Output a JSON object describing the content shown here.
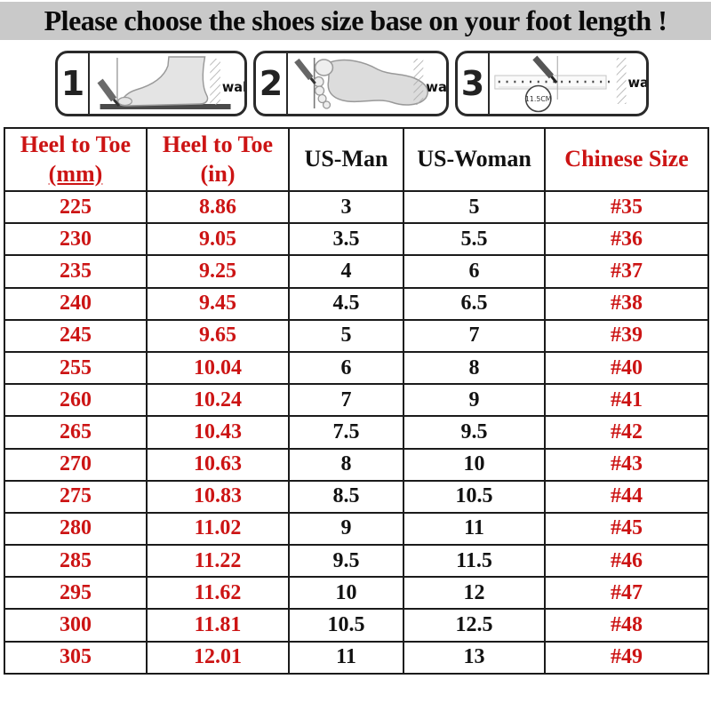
{
  "title": "Please choose the shoes size base on your foot length !",
  "colors": {
    "accent_red": "#cc1414",
    "title_bg": "#c9c9c9",
    "table_border": "#1b1b1b"
  },
  "steps": [
    {
      "number": "1",
      "wall_label": "wall"
    },
    {
      "number": "2",
      "wall_label": "wall"
    },
    {
      "number": "3",
      "wall_label": "wall",
      "measure_label": "11.5CM"
    }
  ],
  "table": {
    "headers": [
      {
        "line1": "Heel to Toe",
        "line2": "(mm)"
      },
      {
        "line1": "Heel to Toe",
        "line2": "(in)"
      },
      {
        "line1": "US-Man"
      },
      {
        "line1": "US-Woman"
      },
      {
        "line1": "Chinese Size"
      }
    ],
    "rows": [
      {
        "mm": "225",
        "in": "8.86",
        "us_man": "3",
        "us_woman": "5",
        "cn": "#35"
      },
      {
        "mm": "230",
        "in": "9.05",
        "us_man": "3.5",
        "us_woman": "5.5",
        "cn": "#36"
      },
      {
        "mm": "235",
        "in": "9.25",
        "us_man": "4",
        "us_woman": "6",
        "cn": "#37"
      },
      {
        "mm": "240",
        "in": "9.45",
        "us_man": "4.5",
        "us_woman": "6.5",
        "cn": "#38"
      },
      {
        "mm": "245",
        "in": "9.65",
        "us_man": "5",
        "us_woman": "7",
        "cn": "#39"
      },
      {
        "mm": "255",
        "in": "10.04",
        "us_man": "6",
        "us_woman": "8",
        "cn": "#40"
      },
      {
        "mm": "260",
        "in": "10.24",
        "us_man": "7",
        "us_woman": "9",
        "cn": "#41"
      },
      {
        "mm": "265",
        "in": "10.43",
        "us_man": "7.5",
        "us_woman": "9.5",
        "cn": "#42"
      },
      {
        "mm": "270",
        "in": "10.63",
        "us_man": "8",
        "us_woman": "10",
        "cn": "#43"
      },
      {
        "mm": "275",
        "in": "10.83",
        "us_man": "8.5",
        "us_woman": "10.5",
        "cn": "#44"
      },
      {
        "mm": "280",
        "in": "11.02",
        "us_man": "9",
        "us_woman": "11",
        "cn": "#45"
      },
      {
        "mm": "285",
        "in": "11.22",
        "us_man": "9.5",
        "us_woman": "11.5",
        "cn": "#46"
      },
      {
        "mm": "295",
        "in": "11.62",
        "us_man": "10",
        "us_woman": "12",
        "cn": "#47"
      },
      {
        "mm": "300",
        "in": "11.81",
        "us_man": "10.5",
        "us_woman": "12.5",
        "cn": "#48"
      },
      {
        "mm": "305",
        "in": "12.01",
        "us_man": "11",
        "us_woman": "13",
        "cn": "#49"
      }
    ]
  }
}
